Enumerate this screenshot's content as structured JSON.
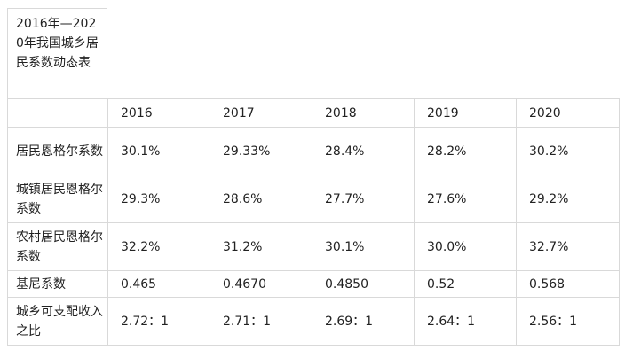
{
  "table": {
    "title": "2016年—2020年我国城乡居民系数动态表",
    "years": [
      "2016",
      "2017",
      "2018",
      "2019",
      "2020"
    ],
    "rows": [
      {
        "label": "居民恩格尔系数",
        "values": [
          "30.1%",
          "29.33%",
          "28.4%",
          "28.2%",
          "30.2%"
        ]
      },
      {
        "label": "城镇居民恩格尔系数",
        "values": [
          "29.3%",
          "28.6%",
          "27.7%",
          "27.6%",
          "29.2%"
        ]
      },
      {
        "label": "农村居民恩格尔系数",
        "values": [
          "32.2%",
          "31.2%",
          "30.1%",
          "30.0%",
          "32.7%"
        ]
      },
      {
        "label": "基尼系数",
        "values": [
          "0.465",
          "0.4670",
          "0.4850",
          "0.52",
          "0.568"
        ]
      },
      {
        "label": "城乡可支配收入之比",
        "values": [
          "2.72：1",
          "2.71：1",
          "2.69：1",
          "2.64：1",
          "2.56：1"
        ]
      }
    ]
  }
}
